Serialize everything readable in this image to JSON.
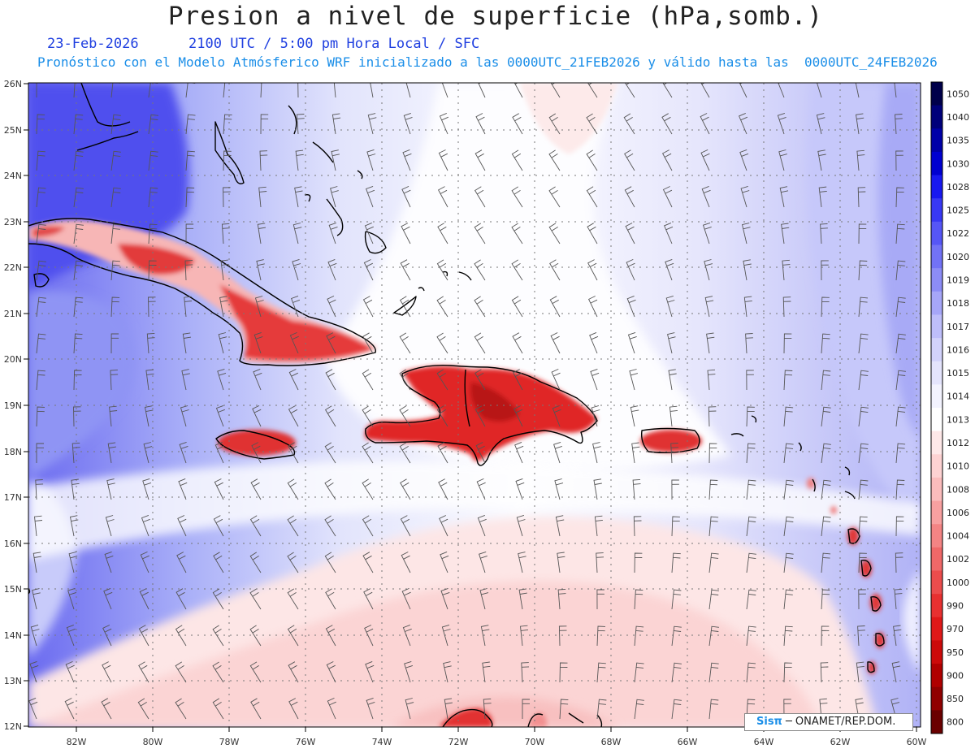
{
  "header": {
    "title": "Presion a nivel de superficie (hPa,somb.)",
    "date": "23-Feb-2026",
    "time_line": "2100 UTC / 5:00 pm Hora Local / SFC",
    "model_line": "Pronóstico con el Modelo Atmósferico WRF inicializado a las 0000UTC_21FEB2026 y válido hasta las  0000UTC_24FEB2026"
  },
  "axes": {
    "lon_labels": [
      "82W",
      "80W",
      "78W",
      "76W",
      "74W",
      "72W",
      "70W",
      "68W",
      "66W",
      "64W",
      "62W",
      "60W"
    ],
    "lat_labels": [
      "26N",
      "25N",
      "24N",
      "23N",
      "22N",
      "21N",
      "20N",
      "19N",
      "18N",
      "17N",
      "16N",
      "15N",
      "14N",
      "13N",
      "12N"
    ]
  },
  "colorbar": {
    "levels": [
      "1050",
      "1040",
      "1035",
      "1030",
      "1028",
      "1025",
      "1022",
      "1020",
      "1019",
      "1018",
      "1017",
      "1016",
      "1015",
      "1014",
      "1013",
      "1012",
      "1010",
      "1008",
      "1006",
      "1004",
      "1002",
      "1000",
      "990",
      "970",
      "950",
      "900",
      "850",
      "800"
    ],
    "colors": [
      "#00004a",
      "#00007a",
      "#0000a8",
      "#0000d0",
      "#1818f0",
      "#3838f4",
      "#5656f6",
      "#7272f6",
      "#8c8cf6",
      "#a6a6f8",
      "#bebefa",
      "#d2d2fb",
      "#e4e4fc",
      "#f3f3fe",
      "#ffffff",
      "#fee8e8",
      "#fdd2d2",
      "#fbbcbc",
      "#f8a0a0",
      "#f48484",
      "#f06868",
      "#ec4c4c",
      "#e83030",
      "#e01818",
      "#cc0a0a",
      "#b00000",
      "#900000",
      "#6a0000"
    ]
  },
  "credit": {
    "brand": "Sisπ",
    "text": " ─  ONAMET/REP.DOM."
  }
}
